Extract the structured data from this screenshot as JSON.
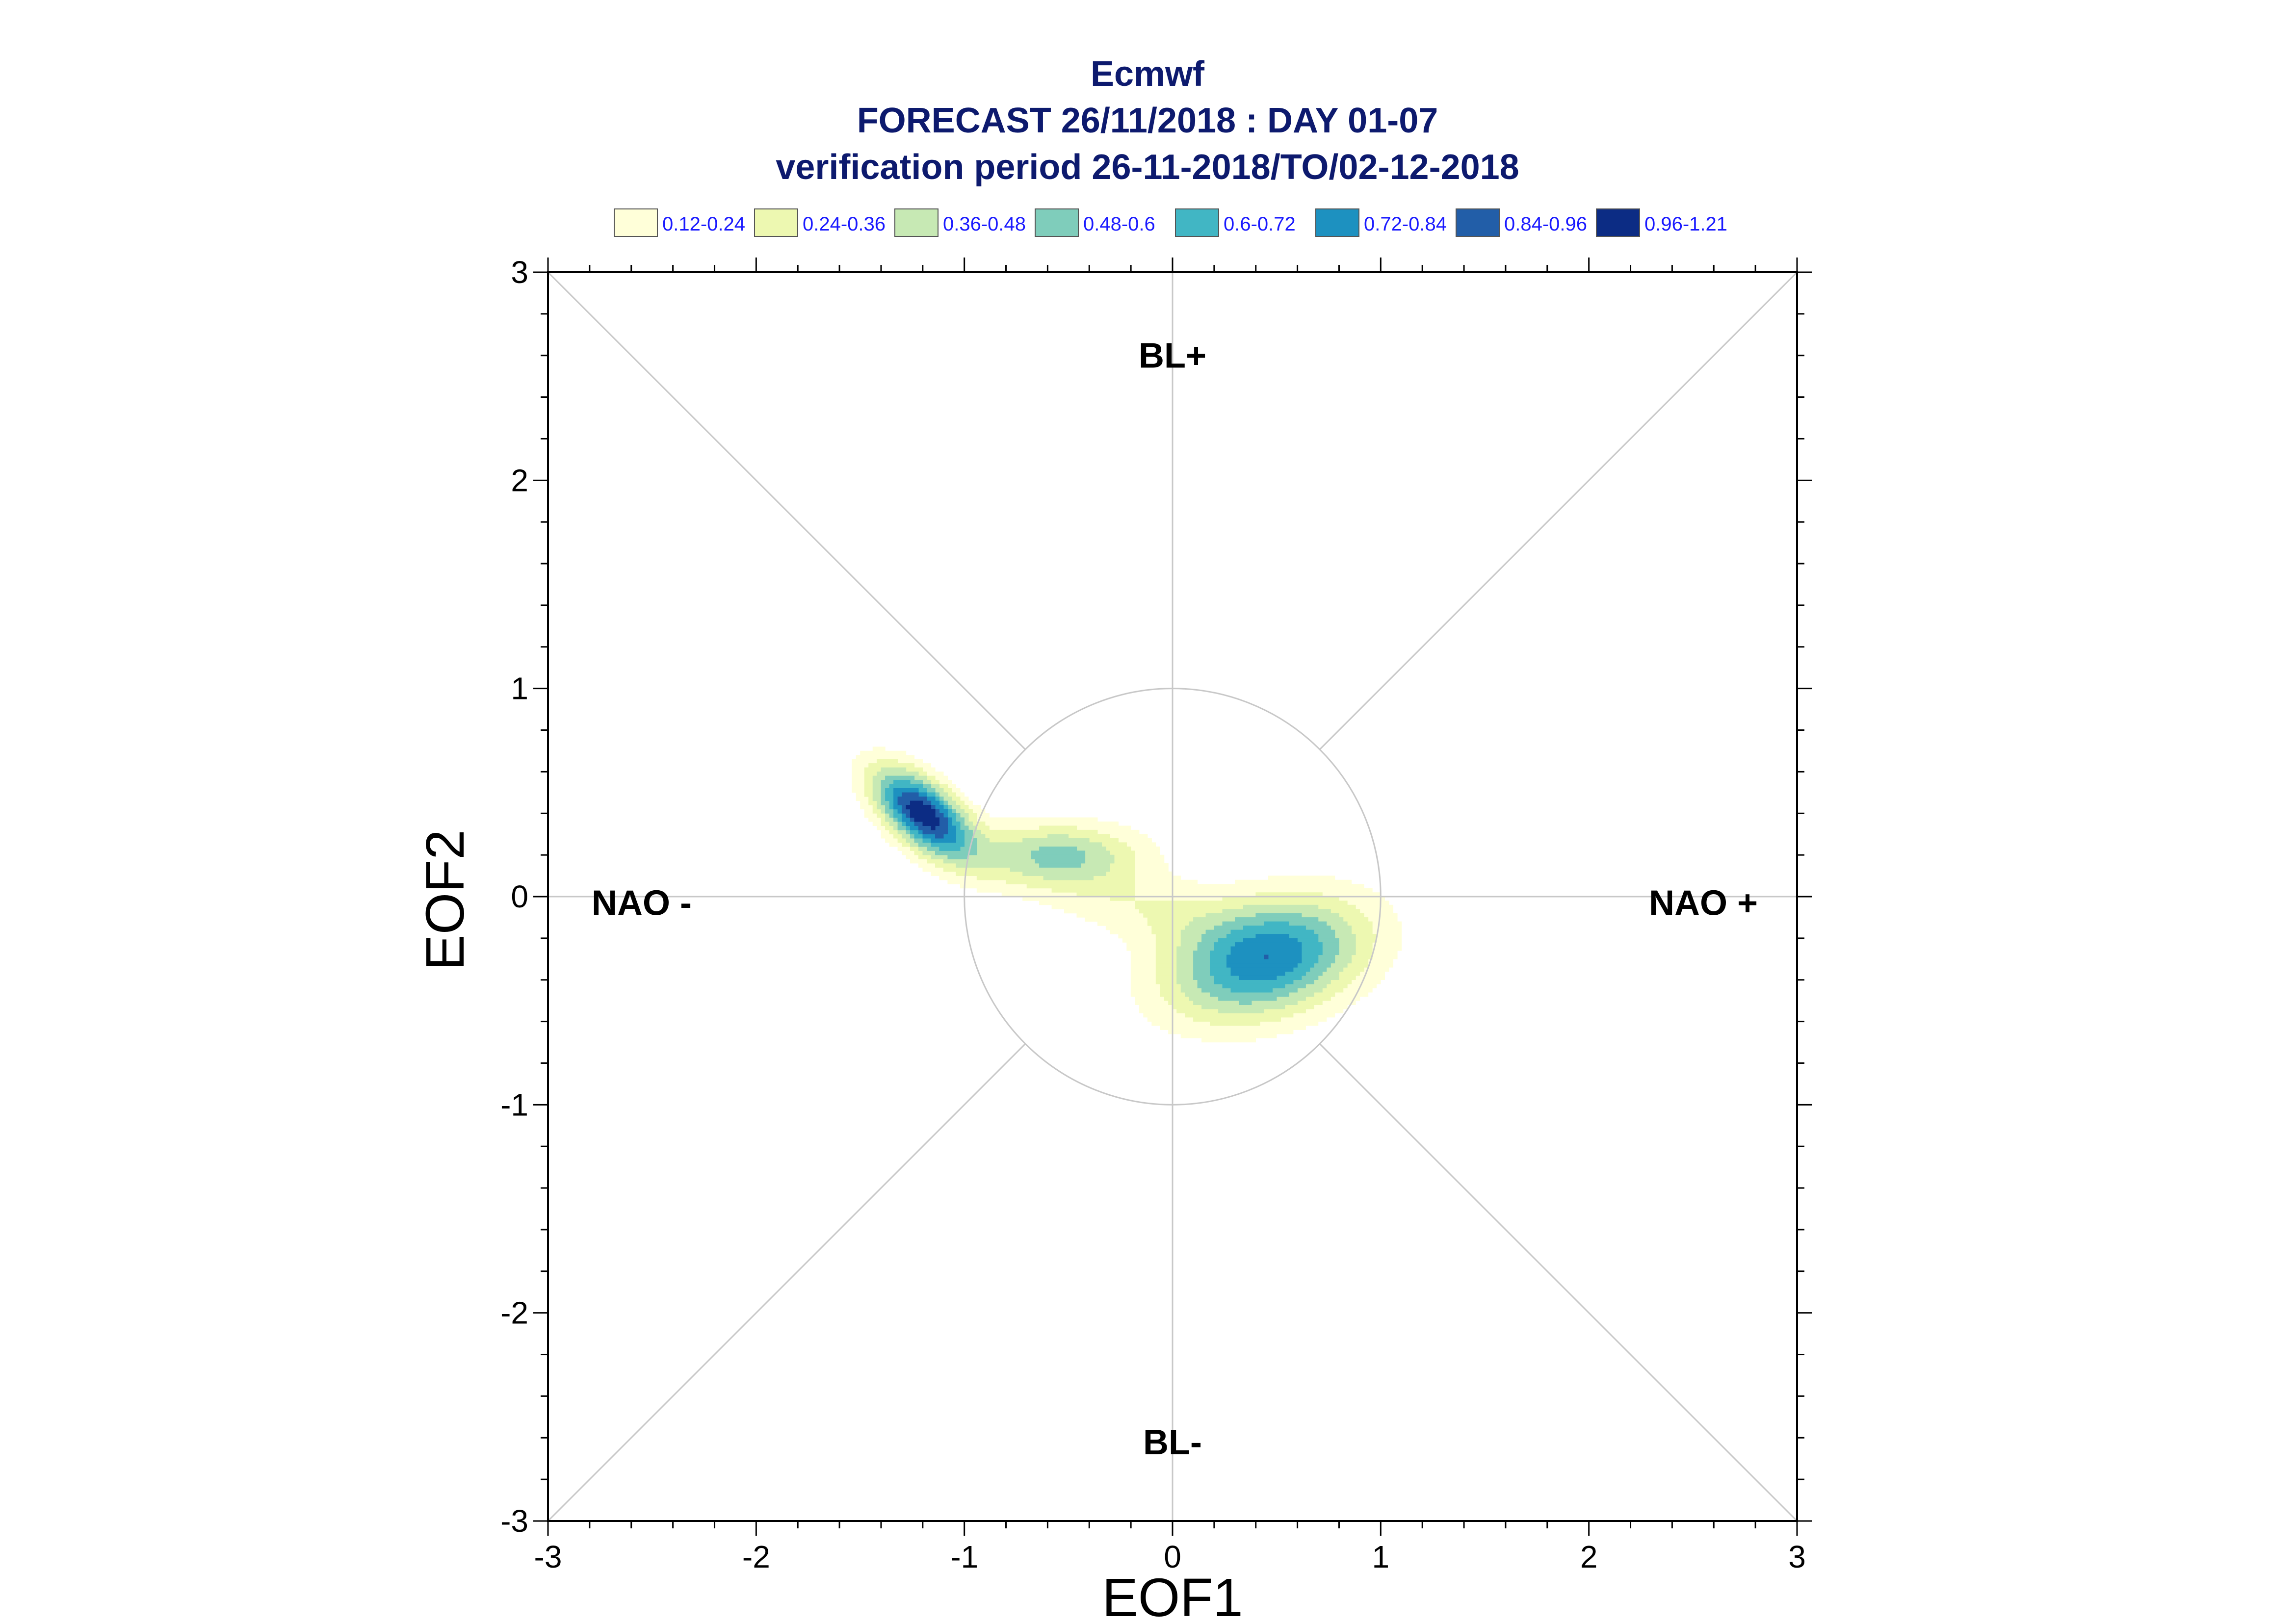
{
  "chart_data": {
    "type": "contour",
    "title": [
      "Ecmwf",
      "FORECAST 26/11/2018 : DAY 01-07",
      "verification period 26-11-2018/TO/02-12-2018"
    ],
    "xlabel": "EOF1",
    "ylabel": "EOF2",
    "xlim": [
      -3,
      3
    ],
    "ylim": [
      -3,
      3
    ],
    "xticks": [
      "-3",
      "-2",
      "-1",
      "0",
      "1",
      "2",
      "3"
    ],
    "yticks": [
      "-3",
      "-2",
      "-1",
      "0",
      "1",
      "2",
      "3"
    ],
    "grid": "diagonals, axes through origin and unit circle",
    "reference_circle_radius": 1,
    "regimes": [
      {
        "label": "BL+",
        "position": "top"
      },
      {
        "label": "BL-",
        "position": "bottom"
      },
      {
        "label": "NAO -",
        "position": "left"
      },
      {
        "label": "NAO +",
        "position": "right"
      }
    ],
    "legend": {
      "placement": "top",
      "items": [
        {
          "label": "0.12-0.24",
          "color": "#ffffd9"
        },
        {
          "label": "0.24-0.36",
          "color": "#edf8b1"
        },
        {
          "label": "0.36-0.48",
          "color": "#c7e9b4"
        },
        {
          "label": "0.48-0.6",
          "color": "#7fcdbb"
        },
        {
          "label": "0.6-0.72",
          "color": "#41b6c4"
        },
        {
          "label": "0.72-0.84",
          "color": "#1d91c0"
        },
        {
          "label": "0.84-0.96",
          "color": "#225ea8"
        },
        {
          "label": "0.96-1.21",
          "color": "#0c2c84"
        }
      ]
    },
    "density_components": [
      {
        "mx": -1.2,
        "my": 0.4,
        "sx": 0.2,
        "sy": 0.1,
        "rot_deg": -40,
        "w": 1.05
      },
      {
        "mx": -0.55,
        "my": 0.2,
        "sx": 0.28,
        "sy": 0.11,
        "rot_deg": 0,
        "w": 0.5
      },
      {
        "mx": 0.45,
        "my": -0.3,
        "sx": 0.34,
        "sy": 0.19,
        "rot_deg": 15,
        "w": 0.82
      },
      {
        "mx": -0.15,
        "my": -0.05,
        "sx": 0.35,
        "sy": 0.12,
        "rot_deg": -10,
        "w": 0.2
      }
    ]
  }
}
